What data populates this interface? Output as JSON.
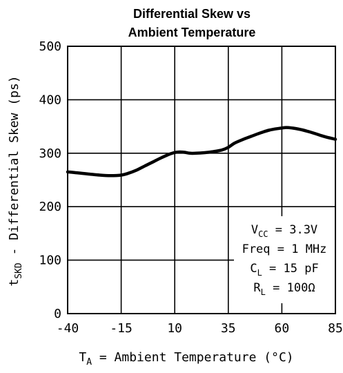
{
  "chart_data": {
    "type": "line",
    "title_lines": [
      "Differential Skew vs",
      "Ambient Temperature"
    ],
    "xlabel": {
      "main": "T",
      "sub": "A",
      "rest": " = Ambient Temperature (°C)"
    },
    "ylabel": {
      "main": "t",
      "sub": "SKD",
      "rest": " - Differential Skew (ps)"
    },
    "xlim": [
      -40,
      85
    ],
    "ylim": [
      0,
      500
    ],
    "xticks": [
      -40,
      -15,
      10,
      35,
      60,
      85
    ],
    "yticks": [
      0,
      100,
      200,
      300,
      400,
      500
    ],
    "xtick_labels": [
      "-40",
      "-15",
      "10",
      "35",
      "60",
      "85"
    ],
    "ytick_labels": [
      "0",
      "100",
      "200",
      "300",
      "400",
      "500"
    ],
    "grid": true,
    "series": [
      {
        "x": [
          -40,
          -35,
          -30,
          -25,
          -20,
          -15,
          -12,
          -8,
          -4,
          0,
          4,
          8,
          11,
          14,
          17,
          20,
          24,
          28,
          32,
          35,
          38,
          42,
          46,
          50,
          54,
          58,
          62,
          65,
          68,
          72,
          76,
          80,
          85
        ],
        "y": [
          265,
          263,
          261,
          259,
          258,
          259,
          262,
          268,
          276,
          284,
          292,
          299,
          302,
          302,
          300,
          300,
          301,
          303,
          306,
          311,
          319,
          326,
          332,
          338,
          343,
          346,
          348,
          347,
          345,
          341,
          336,
          331,
          326
        ]
      }
    ],
    "annotations": [
      {
        "main": "V",
        "sub": "CC",
        "rest": " = 3.3V"
      },
      {
        "main": "Freq = 1 MHz",
        "sub": "",
        "rest": ""
      },
      {
        "main": "C",
        "sub": "L",
        "rest": " = 15 pF"
      },
      {
        "main": "R",
        "sub": "L",
        "rest": " = 100Ω"
      }
    ],
    "annotation_placement": "lower-right"
  }
}
